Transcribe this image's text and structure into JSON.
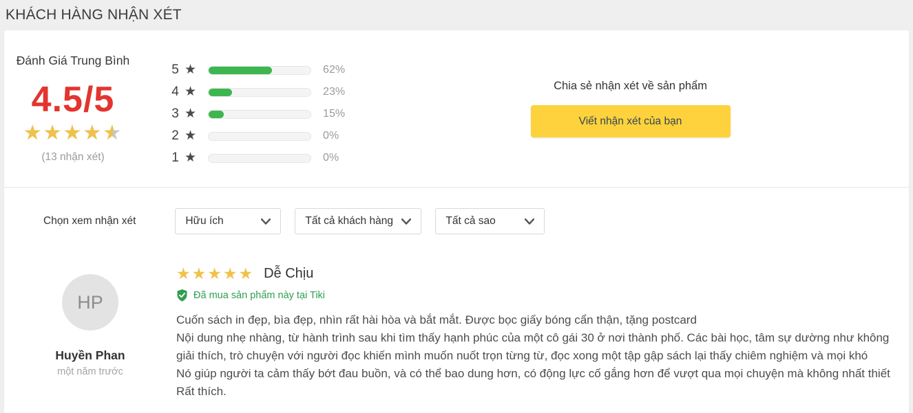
{
  "header": {
    "title": "KHÁCH HÀNG NHẬN XÉT"
  },
  "summary": {
    "label": "Đánh Giá Trung Bình",
    "score": "4.5/5",
    "star_percent": 90,
    "review_count": "(13 nhận xét)"
  },
  "distribution": {
    "rows": [
      {
        "stars": "5",
        "percent": "62%",
        "value": 62
      },
      {
        "stars": "4",
        "percent": "23%",
        "value": 23
      },
      {
        "stars": "3",
        "percent": "15%",
        "value": 15
      },
      {
        "stars": "2",
        "percent": "0%",
        "value": 0
      },
      {
        "stars": "1",
        "percent": "0%",
        "value": 0
      }
    ]
  },
  "share": {
    "prompt": "Chia sẻ nhận xét về sản phẩm",
    "button_label": "Viết nhận xét của bạn"
  },
  "filters": {
    "label": "Chọn xem nhận xét",
    "dropdowns": [
      {
        "value": "Hữu ích"
      },
      {
        "value": "Tất cả khách hàng"
      },
      {
        "value": "Tất cả sao"
      }
    ]
  },
  "review": {
    "avatar_initials": "HP",
    "author": "Huyền Phan",
    "time": "một năm trước",
    "rating": 5,
    "title": "Dễ Chịu",
    "verified_label": "Đã mua sản phẩm này tại Tiki",
    "body_lines": [
      "Cuốn sách in đẹp, bìa đẹp, nhìn rất hài hòa và bắt mắt. Được bọc giấy bóng cẩn thận, tặng postcard",
      "Nội dung nhẹ nhàng, từ hành trình sau khi tìm thấy hạnh phúc của một cô gái 30 ở nơi thành phố. Các bài học, tâm sự dường như không",
      "giải thích, trò chuyện với người đọc khiến mình muốn nuốt trọn từng từ, đọc xong một tập gập sách lại thấy chiêm nghiệm và mọi khó",
      "Nó giúp người ta cảm thấy bớt đau buồn, và có thể bao dung hơn, có động lực cố gắng hơn để vượt qua mọi chuyện mà không nhất thiết",
      "Rất thích."
    ]
  },
  "icons": {
    "star": "★",
    "stars_five": "★★★★★"
  },
  "colors": {
    "accent_red": "#e3342f",
    "star_yellow": "#f0c14b",
    "bar_green": "#3eb650",
    "button_yellow": "#fdd23d",
    "verified_green": "#2f9e4f",
    "page_bg": "#efefef"
  }
}
